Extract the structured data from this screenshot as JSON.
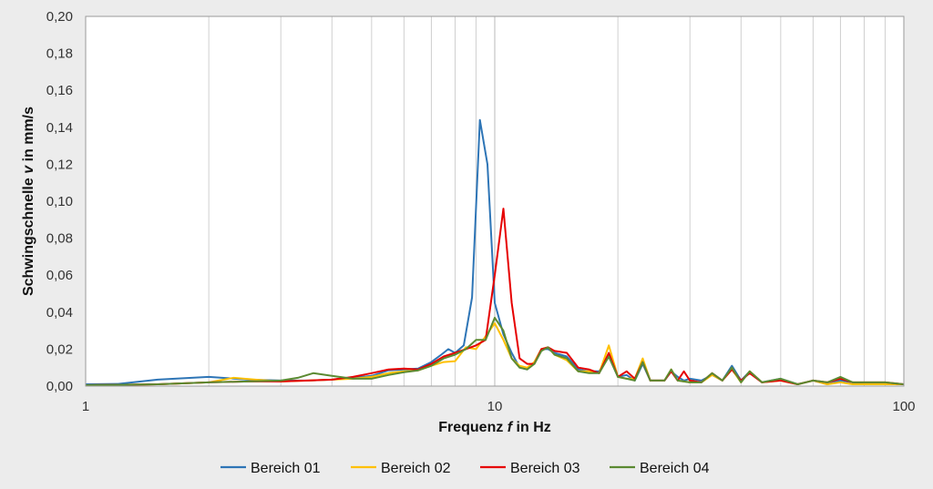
{
  "chart_data": {
    "type": "line",
    "xlabel_prefix": "Frequenz ",
    "xlabel_symbol": "f",
    "xlabel_suffix": " in Hz",
    "ylabel_prefix": "Schwingschnelle ",
    "ylabel_symbol": "v",
    "ylabel_suffix": " in mm/s",
    "x_scale": "log",
    "xlim": [
      1,
      100
    ],
    "ylim": [
      0,
      0.2
    ],
    "x_ticks": [
      1,
      10,
      100
    ],
    "x_tick_labels": [
      "1",
      "10",
      "100"
    ],
    "y_ticks": [
      0,
      0.02,
      0.04,
      0.06,
      0.08,
      0.1,
      0.12,
      0.14,
      0.16,
      0.18,
      0.2
    ],
    "y_tick_labels": [
      "0,00",
      "0,02",
      "0,04",
      "0,06",
      "0,08",
      "0,10",
      "0,12",
      "0,14",
      "0,16",
      "0,18",
      "0,20"
    ],
    "grid": "vertical",
    "legend_position": "bottom-center",
    "series": [
      {
        "name": "Bereich 01",
        "color": "#2e75b6",
        "points": [
          [
            1,
            0.001
          ],
          [
            1.2,
            0.0012
          ],
          [
            1.5,
            0.0035
          ],
          [
            2,
            0.005
          ],
          [
            2.5,
            0.0035
          ],
          [
            3,
            0.003
          ],
          [
            3.5,
            0.003
          ],
          [
            4,
            0.0035
          ],
          [
            4.5,
            0.0045
          ],
          [
            5,
            0.0055
          ],
          [
            5.5,
            0.0085
          ],
          [
            6,
            0.009
          ],
          [
            6.5,
            0.0095
          ],
          [
            7,
            0.013
          ],
          [
            7.4,
            0.017
          ],
          [
            7.7,
            0.02
          ],
          [
            8,
            0.018
          ],
          [
            8.4,
            0.022
          ],
          [
            8.8,
            0.048
          ],
          [
            9.2,
            0.144
          ],
          [
            9.6,
            0.12
          ],
          [
            10,
            0.045
          ],
          [
            10.5,
            0.028
          ],
          [
            11,
            0.018
          ],
          [
            11.5,
            0.01
          ],
          [
            12,
            0.009
          ],
          [
            12.5,
            0.013
          ],
          [
            13,
            0.02
          ],
          [
            13.5,
            0.02
          ],
          [
            14,
            0.018
          ],
          [
            15,
            0.016
          ],
          [
            16,
            0.009
          ],
          [
            17,
            0.008
          ],
          [
            18,
            0.008
          ],
          [
            19,
            0.016
          ],
          [
            20,
            0.005
          ],
          [
            21,
            0.006
          ],
          [
            22,
            0.003
          ],
          [
            23,
            0.012
          ],
          [
            24,
            0.003
          ],
          [
            26,
            0.003
          ],
          [
            27,
            0.008
          ],
          [
            28,
            0.005
          ],
          [
            29,
            0.003
          ],
          [
            30,
            0.004
          ],
          [
            32,
            0.003
          ],
          [
            34,
            0.006
          ],
          [
            36,
            0.003
          ],
          [
            38,
            0.011
          ],
          [
            40,
            0.003
          ],
          [
            42,
            0.008
          ],
          [
            45,
            0.002
          ],
          [
            50,
            0.004
          ],
          [
            55,
            0.001
          ],
          [
            60,
            0.003
          ],
          [
            65,
            0.001
          ],
          [
            70,
            0.003
          ],
          [
            75,
            0.002
          ],
          [
            80,
            0.001
          ],
          [
            90,
            0.001
          ],
          [
            100,
            0.001
          ]
        ]
      },
      {
        "name": "Bereich 02",
        "color": "#ffc000",
        "points": [
          [
            1,
            0.0005
          ],
          [
            1.5,
            0.001
          ],
          [
            2,
            0.002
          ],
          [
            2.3,
            0.0045
          ],
          [
            2.6,
            0.0035
          ],
          [
            3,
            0.0025
          ],
          [
            3.5,
            0.003
          ],
          [
            4,
            0.0035
          ],
          [
            4.5,
            0.004
          ],
          [
            5,
            0.005
          ],
          [
            5.5,
            0.007
          ],
          [
            6,
            0.008
          ],
          [
            6.5,
            0.0085
          ],
          [
            7,
            0.011
          ],
          [
            7.5,
            0.013
          ],
          [
            8,
            0.0135
          ],
          [
            8.5,
            0.021
          ],
          [
            9,
            0.02
          ],
          [
            9.5,
            0.027
          ],
          [
            10,
            0.034
          ],
          [
            10.5,
            0.025
          ],
          [
            11,
            0.015
          ],
          [
            11.5,
            0.011
          ],
          [
            12,
            0.01
          ],
          [
            12.5,
            0.013
          ],
          [
            13,
            0.02
          ],
          [
            13.5,
            0.021
          ],
          [
            14,
            0.017
          ],
          [
            15,
            0.014
          ],
          [
            16,
            0.008
          ],
          [
            17,
            0.008
          ],
          [
            18,
            0.007
          ],
          [
            19,
            0.022
          ],
          [
            20,
            0.005
          ],
          [
            21,
            0.004
          ],
          [
            22,
            0.004
          ],
          [
            23,
            0.015
          ],
          [
            24,
            0.003
          ],
          [
            26,
            0.003
          ],
          [
            27,
            0.009
          ],
          [
            28,
            0.003
          ],
          [
            30,
            0.002
          ],
          [
            32,
            0.002
          ],
          [
            34,
            0.006
          ],
          [
            36,
            0.003
          ],
          [
            38,
            0.009
          ],
          [
            40,
            0.002
          ],
          [
            42,
            0.008
          ],
          [
            45,
            0.002
          ],
          [
            50,
            0.003
          ],
          [
            55,
            0.001
          ],
          [
            60,
            0.003
          ],
          [
            65,
            0.001
          ],
          [
            70,
            0.002
          ],
          [
            75,
            0.001
          ],
          [
            80,
            0.001
          ],
          [
            90,
            0.001
          ],
          [
            100,
            0.001
          ]
        ]
      },
      {
        "name": "Bereich 03",
        "color": "#e60000",
        "points": [
          [
            1,
            0.0005
          ],
          [
            1.5,
            0.001
          ],
          [
            2,
            0.002
          ],
          [
            2.5,
            0.0025
          ],
          [
            3,
            0.0025
          ],
          [
            3.5,
            0.003
          ],
          [
            4,
            0.0035
          ],
          [
            4.5,
            0.005
          ],
          [
            5,
            0.007
          ],
          [
            5.5,
            0.009
          ],
          [
            6,
            0.0095
          ],
          [
            6.5,
            0.009
          ],
          [
            7,
            0.012
          ],
          [
            7.5,
            0.016
          ],
          [
            8,
            0.018
          ],
          [
            8.5,
            0.02
          ],
          [
            9,
            0.022
          ],
          [
            9.5,
            0.025
          ],
          [
            10,
            0.06
          ],
          [
            10.5,
            0.096
          ],
          [
            11,
            0.045
          ],
          [
            11.5,
            0.015
          ],
          [
            12,
            0.012
          ],
          [
            12.5,
            0.012
          ],
          [
            13,
            0.02
          ],
          [
            13.5,
            0.021
          ],
          [
            14,
            0.019
          ],
          [
            15,
            0.018
          ],
          [
            16,
            0.01
          ],
          [
            17,
            0.009
          ],
          [
            18,
            0.007
          ],
          [
            19,
            0.018
          ],
          [
            20,
            0.005
          ],
          [
            21,
            0.008
          ],
          [
            22,
            0.004
          ],
          [
            23,
            0.013
          ],
          [
            24,
            0.003
          ],
          [
            26,
            0.003
          ],
          [
            27,
            0.008
          ],
          [
            28,
            0.003
          ],
          [
            29,
            0.008
          ],
          [
            30,
            0.003
          ],
          [
            32,
            0.002
          ],
          [
            34,
            0.007
          ],
          [
            36,
            0.003
          ],
          [
            38,
            0.009
          ],
          [
            40,
            0.003
          ],
          [
            42,
            0.007
          ],
          [
            45,
            0.002
          ],
          [
            50,
            0.003
          ],
          [
            55,
            0.001
          ],
          [
            60,
            0.003
          ],
          [
            65,
            0.002
          ],
          [
            70,
            0.004
          ],
          [
            75,
            0.002
          ],
          [
            80,
            0.002
          ],
          [
            90,
            0.002
          ],
          [
            100,
            0.001
          ]
        ]
      },
      {
        "name": "Bereich 04",
        "color": "#5b8a32",
        "points": [
          [
            1,
            0.0005
          ],
          [
            1.5,
            0.001
          ],
          [
            2,
            0.002
          ],
          [
            2.5,
            0.0025
          ],
          [
            3,
            0.003
          ],
          [
            3.3,
            0.0045
          ],
          [
            3.6,
            0.007
          ],
          [
            4,
            0.0055
          ],
          [
            4.5,
            0.004
          ],
          [
            5,
            0.004
          ],
          [
            5.5,
            0.006
          ],
          [
            6,
            0.0075
          ],
          [
            6.5,
            0.0085
          ],
          [
            7,
            0.011
          ],
          [
            7.5,
            0.015
          ],
          [
            8,
            0.017
          ],
          [
            8.5,
            0.02
          ],
          [
            9,
            0.025
          ],
          [
            9.5,
            0.025
          ],
          [
            10,
            0.037
          ],
          [
            10.5,
            0.03
          ],
          [
            11,
            0.015
          ],
          [
            11.5,
            0.01
          ],
          [
            12,
            0.009
          ],
          [
            12.5,
            0.012
          ],
          [
            13,
            0.019
          ],
          [
            13.5,
            0.021
          ],
          [
            14,
            0.017
          ],
          [
            15,
            0.015
          ],
          [
            16,
            0.008
          ],
          [
            17,
            0.007
          ],
          [
            18,
            0.007
          ],
          [
            19,
            0.016
          ],
          [
            20,
            0.005
          ],
          [
            21,
            0.004
          ],
          [
            22,
            0.003
          ],
          [
            23,
            0.013
          ],
          [
            24,
            0.003
          ],
          [
            26,
            0.003
          ],
          [
            27,
            0.009
          ],
          [
            28,
            0.003
          ],
          [
            30,
            0.002
          ],
          [
            32,
            0.002
          ],
          [
            34,
            0.007
          ],
          [
            36,
            0.003
          ],
          [
            38,
            0.01
          ],
          [
            40,
            0.002
          ],
          [
            42,
            0.008
          ],
          [
            45,
            0.002
          ],
          [
            50,
            0.004
          ],
          [
            55,
            0.001
          ],
          [
            60,
            0.003
          ],
          [
            65,
            0.002
          ],
          [
            70,
            0.005
          ],
          [
            75,
            0.002
          ],
          [
            80,
            0.002
          ],
          [
            90,
            0.002
          ],
          [
            100,
            0.001
          ]
        ]
      }
    ]
  }
}
